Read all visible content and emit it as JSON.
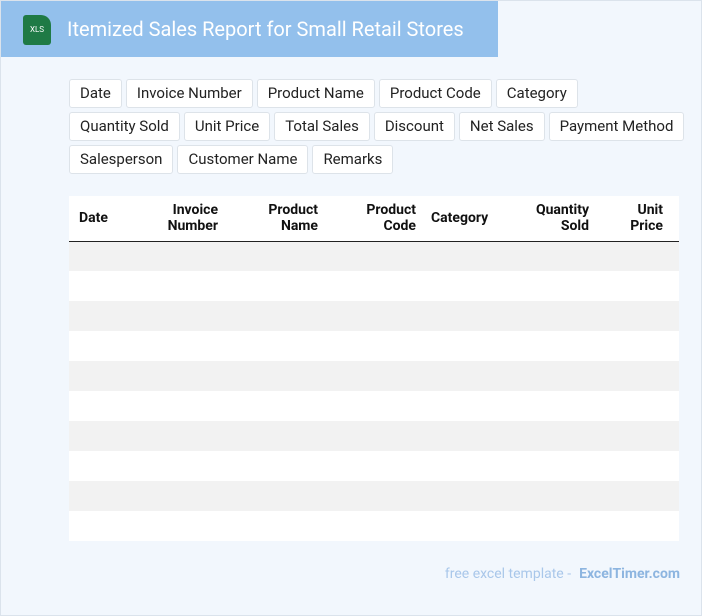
{
  "header": {
    "icon": "XLS",
    "title": "Itemized Sales Report for Small Retail Stores"
  },
  "tags": [
    "Date",
    "Invoice Number",
    "Product Name",
    "Product Code",
    "Category",
    "Quantity Sold",
    "Unit Price",
    "Total Sales",
    "Discount",
    "Net Sales",
    "Payment Method",
    "Salesperson",
    "Customer Name",
    "Remarks"
  ],
  "table": {
    "columns": [
      "Date",
      "Invoice Number",
      "Product Name",
      "Product Code",
      "Category",
      "Quantity Sold",
      "Unit Price"
    ]
  },
  "footer": {
    "text": "free excel template -",
    "brand": "ExcelTimer.com"
  }
}
